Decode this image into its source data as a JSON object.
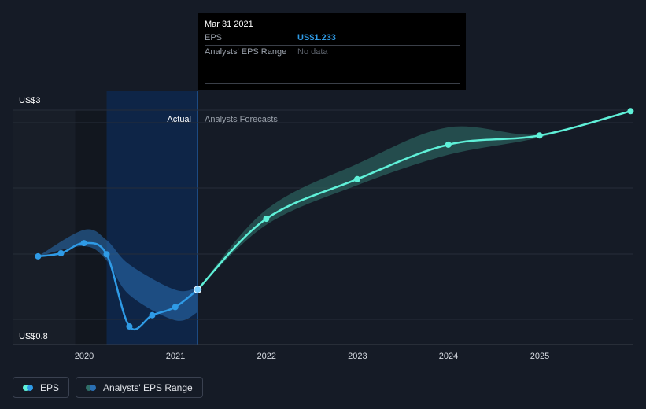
{
  "tooltip": {
    "date": "Mar 31 2021",
    "rows": [
      {
        "key": "EPS",
        "value": "US$1.233"
      },
      {
        "key": "Analysts' EPS Range",
        "value": "No data"
      }
    ]
  },
  "zones": {
    "actual_label": "Actual",
    "forecast_label": "Analysts Forecasts"
  },
  "legend": {
    "eps_label": "EPS",
    "range_label": "Analysts' EPS Range"
  },
  "colors": {
    "eps_actual": "#2f9be6",
    "eps_forecast": "#5ff0d8",
    "range_actual": "#2a6fb3",
    "range_forecast": "#2f6e68",
    "highlight_band": "#0e2547",
    "background": "#151b26"
  },
  "chart_data": {
    "type": "line",
    "y_axis": {
      "min": 0.8,
      "max": 3,
      "labels": [
        "US$3",
        "US$0.8"
      ]
    },
    "x_axis": {
      "ticks": [
        2020,
        2021,
        2022,
        2023,
        2024,
        2025
      ],
      "labels": [
        "2020",
        "2021",
        "2022",
        "2023",
        "2024",
        "2025"
      ]
    },
    "grid": true,
    "series": [
      {
        "name": "EPS",
        "segment": "actual",
        "x": [
          "2019-06-30",
          "2019-09-30",
          "2019-12-31",
          "2020-03-31",
          "2020-06-30",
          "2020-09-30",
          "2020-12-31",
          "2021-03-31"
        ],
        "y": [
          1.56,
          1.59,
          1.69,
          1.58,
          0.87,
          0.98,
          1.06,
          1.233
        ]
      },
      {
        "name": "EPS",
        "segment": "forecast",
        "x": [
          "2021-03-31",
          "2021-12-31",
          "2022-12-31",
          "2023-12-31",
          "2024-12-31",
          "2025-12-31"
        ],
        "y": [
          1.233,
          1.93,
          2.32,
          2.66,
          2.75,
          2.99
        ]
      },
      {
        "name": "Analysts' EPS Range",
        "segment": "actual",
        "x": [
          "2019-06-30",
          "2019-12-31",
          "2020-03-31",
          "2020-06-30",
          "2020-12-31",
          "2021-03-31"
        ],
        "high": [
          1.56,
          1.82,
          1.72,
          1.48,
          1.23,
          1.25
        ],
        "low": [
          1.56,
          1.66,
          1.52,
          1.18,
          0.93,
          1.01
        ]
      },
      {
        "name": "Analysts' EPS Range",
        "segment": "forecast",
        "x": [
          "2021-03-31",
          "2021-12-31",
          "2022-12-31",
          "2023-12-31",
          "2024-12-31",
          "2025-12-31"
        ],
        "high": [
          1.233,
          2.02,
          2.47,
          2.83,
          2.76,
          2.99
        ],
        "low": [
          1.233,
          1.87,
          2.26,
          2.56,
          2.73,
          2.99
        ]
      }
    ]
  }
}
